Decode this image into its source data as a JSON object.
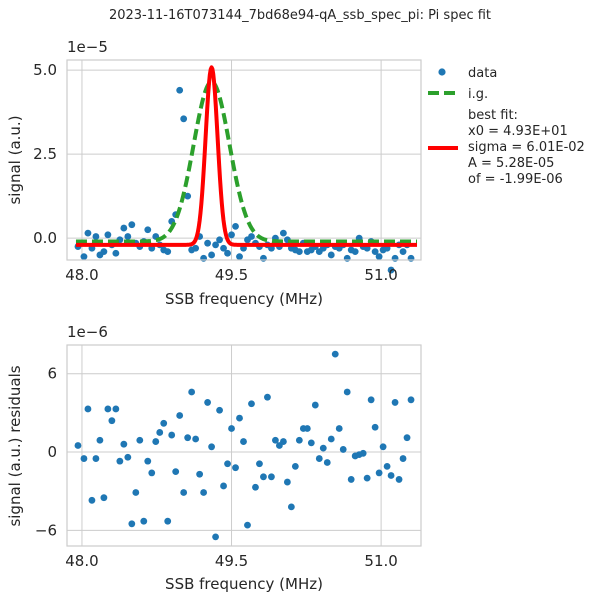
{
  "chart_data": [
    {
      "type": "scatter+line",
      "suptitle": "2023-11-16T073144_7bd68e94-qA_ssb_spec_pi: Pi spec fit",
      "xlabel": "SSB frequency (MHz)",
      "ylabel": "signal (a.u.)",
      "y_offset_text": "1e−5",
      "xlim": [
        47.85,
        51.4
      ],
      "ylim": [
        -0.65,
        5.3
      ],
      "xticks": [
        48.0,
        49.5,
        51.0
      ],
      "xtick_labels": [
        "48.0",
        "49.5",
        "51.0"
      ],
      "yticks": [
        0.0,
        2.5,
        5.0
      ],
      "ytick_labels": [
        "0.0",
        "2.5",
        "5.0"
      ],
      "grid": true,
      "legend": {
        "position": "outside right",
        "data_label": "data",
        "ig_label": "i.g.",
        "fit_title": "best fit:",
        "fit_lines": [
          "x0 = 4.93E+01",
          "sigma = 6.01E-02",
          "A = 5.28E-05",
          "of = -1.99E-06"
        ]
      },
      "series": [
        {
          "name": "data",
          "style": "markers",
          "color": "#1f77b4",
          "x": [
            47.96,
            48.02,
            48.06,
            48.1,
            48.14,
            48.18,
            48.22,
            48.26,
            48.3,
            48.34,
            48.38,
            48.42,
            48.46,
            48.5,
            48.54,
            48.58,
            48.62,
            48.66,
            48.7,
            48.74,
            48.78,
            48.82,
            48.86,
            48.9,
            48.94,
            48.98,
            49.02,
            49.06,
            49.1,
            49.14,
            49.18,
            49.22,
            49.26,
            49.3,
            49.34,
            49.38,
            49.42,
            49.46,
            49.5,
            49.54,
            49.58,
            49.62,
            49.66,
            49.7,
            49.74,
            49.78,
            49.82,
            49.86,
            49.9,
            49.94,
            49.98,
            50.02,
            50.06,
            50.1,
            50.14,
            50.18,
            50.22,
            50.26,
            50.3,
            50.34,
            50.38,
            50.42,
            50.46,
            50.5,
            50.54,
            50.58,
            50.62,
            50.66,
            50.7,
            50.74,
            50.78,
            50.82,
            50.86,
            50.9,
            50.94,
            50.98,
            51.02,
            51.06,
            51.1,
            51.14,
            51.18,
            51.22,
            51.26,
            51.3
          ],
          "y": [
            -0.25,
            -0.55,
            0.15,
            -0.3,
            0.05,
            -0.5,
            -0.4,
            0.1,
            -0.2,
            -0.45,
            -0.05,
            0.3,
            0.05,
            0.4,
            -0.15,
            -0.25,
            -0.1,
            0.25,
            -0.3,
            0.05,
            -0.2,
            -0.35,
            -0.4,
            0.5,
            0.7,
            4.4,
            3.55,
            1.25,
            -0.35,
            -0.3,
            0.05,
            -0.6,
            -0.15,
            -0.5,
            -0.2,
            -0.05,
            -0.3,
            -0.45,
            0.1,
            0.35,
            -0.55,
            -0.3,
            -0.05,
            0.05,
            -0.15,
            -0.25,
            -0.6,
            -0.2,
            -0.3,
            0.0,
            -0.25,
            0.15,
            -0.05,
            -0.3,
            -0.35,
            -0.4,
            -0.15,
            -0.4,
            -0.35,
            -0.25,
            -0.4,
            -0.3,
            -0.2,
            -0.5,
            -0.25,
            -0.3,
            -0.2,
            -0.6,
            -0.35,
            -0.4,
            0.0,
            -0.25,
            -0.3,
            -0.1,
            -0.4,
            -0.55,
            -0.35,
            -0.3,
            -0.95,
            -0.6,
            -0.2,
            -0.4,
            -0.2,
            -0.6
          ]
        },
        {
          "name": "i.g.",
          "style": "dashed",
          "color": "#2ca02c",
          "model": "gaussian",
          "x0": 49.3,
          "sigma": 0.18,
          "A": 4.75e-05,
          "of": -1e-06
        },
        {
          "name": "best fit",
          "style": "solid",
          "color": "#ff0000",
          "model": "gaussian",
          "x0": 49.3,
          "sigma": 0.0601,
          "A": 5.28e-05,
          "of": -1.99e-06
        }
      ]
    },
    {
      "type": "scatter",
      "xlabel": "SSB frequency (MHz)",
      "ylabel": "signal (a.u.) residuals",
      "y_offset_text": "1e−6",
      "xlim": [
        47.85,
        51.4
      ],
      "ylim": [
        -7.2,
        8.2
      ],
      "xticks": [
        48.0,
        49.5,
        51.0
      ],
      "xtick_labels": [
        "48.0",
        "49.5",
        "51.0"
      ],
      "yticks": [
        -6,
        0,
        6
      ],
      "ytick_labels": [
        "−6",
        "0",
        "6"
      ],
      "grid": true,
      "series": [
        {
          "name": "residuals",
          "style": "markers",
          "color": "#1f77b4",
          "x": [
            47.96,
            48.02,
            48.06,
            48.1,
            48.14,
            48.18,
            48.22,
            48.26,
            48.3,
            48.34,
            48.38,
            48.42,
            48.46,
            48.5,
            48.54,
            48.58,
            48.62,
            48.66,
            48.7,
            48.74,
            48.78,
            48.82,
            48.86,
            48.9,
            48.94,
            48.98,
            49.02,
            49.06,
            49.1,
            49.14,
            49.18,
            49.22,
            49.26,
            49.3,
            49.34,
            49.38,
            49.42,
            49.46,
            49.5,
            49.54,
            49.58,
            49.62,
            49.66,
            49.7,
            49.74,
            49.78,
            49.82,
            49.86,
            49.9,
            49.94,
            49.98,
            50.02,
            50.06,
            50.1,
            50.14,
            50.18,
            50.22,
            50.26,
            50.3,
            50.34,
            50.38,
            50.42,
            50.46,
            50.5,
            50.54,
            50.58,
            50.62,
            50.66,
            50.7,
            50.74,
            50.78,
            50.82,
            50.86,
            50.9,
            50.94,
            50.98,
            51.02,
            51.06,
            51.1,
            51.14,
            51.18,
            51.22,
            51.26,
            51.3
          ],
          "y": [
            0.5,
            -0.5,
            3.3,
            -3.7,
            -0.5,
            0.9,
            -3.5,
            3.3,
            2.4,
            3.3,
            -0.7,
            0.6,
            -0.4,
            -5.5,
            -3.1,
            0.9,
            -5.3,
            -0.7,
            -1.6,
            0.8,
            1.5,
            2.2,
            -5.3,
            1.3,
            -1.5,
            2.8,
            -3.1,
            1.1,
            4.6,
            1.0,
            -1.7,
            -3.1,
            3.8,
            0.4,
            -6.5,
            3.2,
            -2.6,
            -0.9,
            1.8,
            -1.2,
            2.6,
            0.8,
            -5.6,
            3.7,
            -2.7,
            -0.9,
            -1.9,
            4.2,
            -1.9,
            0.9,
            0.5,
            0.8,
            -2.3,
            -4.2,
            -1.1,
            0.9,
            1.8,
            1.8,
            0.7,
            3.6,
            -0.5,
            0.3,
            -0.8,
            1.0,
            7.5,
            1.8,
            0.2,
            4.6,
            -2.1,
            -0.3,
            -0.2,
            -0.1,
            -2.0,
            4.0,
            1.9,
            -1.6,
            0.4,
            -1.1,
            -1.8,
            3.8,
            -2.1,
            -0.5,
            1.1,
            4.0
          ]
        }
      ]
    }
  ]
}
